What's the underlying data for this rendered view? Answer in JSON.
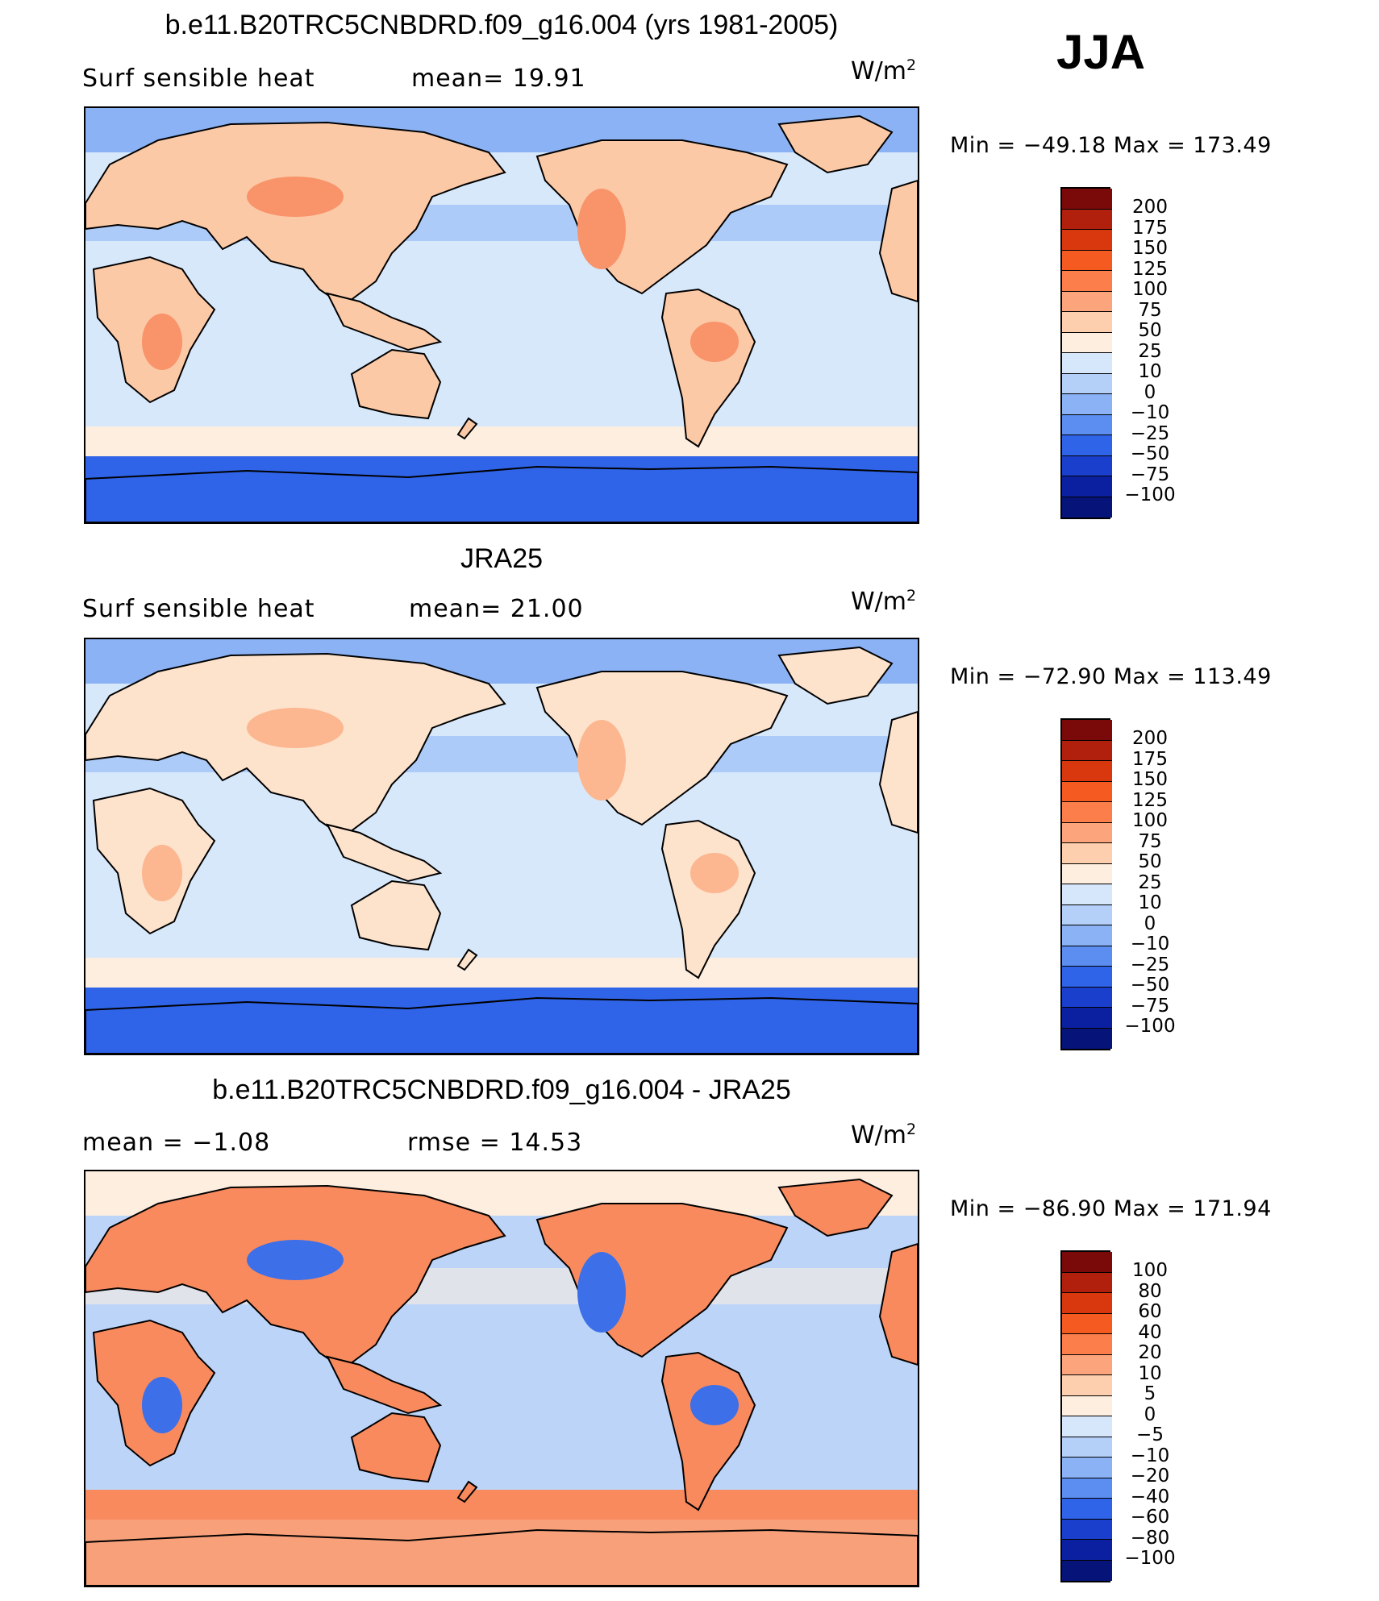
{
  "header": {
    "season": "JJA"
  },
  "panels": [
    {
      "title": "b.e11.B20TRC5CNBDRD.f09_g16.004 (yrs 1981-2005)",
      "left_label": "Surf  sensible  heat",
      "center_label": "mean=   19.91",
      "units_base": "W/m",
      "units_exp": "2",
      "minmax": "Min  =  −49.18  Max  =  173.49",
      "colorbar": {
        "labels": [
          "200",
          "175",
          "150",
          "125",
          "100",
          "75",
          "50",
          "25",
          "10",
          "0",
          "−10",
          "−25",
          "−50",
          "−75",
          "−100"
        ],
        "colors": [
          "#7a0a0a",
          "#b0200c",
          "#d9380f",
          "#f55a21",
          "#fb7e4b",
          "#fca57d",
          "#fdcfae",
          "#fdeedf",
          "#d6e6fb",
          "#b4cff8",
          "#8ab2f5",
          "#5b8ef0",
          "#2f63e8",
          "#1a3fcc",
          "#0b20a0",
          "#06147a"
        ]
      },
      "map": {
        "land_fill": "#fcc9a6",
        "ocean_fill": "#d7e8fb",
        "polar_fill": "#2f63e8",
        "arctic_fill": "#8ab2f5",
        "band_fill": "#fdeedf",
        "hot_fill": "#f8936a"
      }
    },
    {
      "title": "JRA25",
      "left_label": "Surf  sensible  heat",
      "center_label": "mean=   21.00",
      "units_base": "W/m",
      "units_exp": "2",
      "minmax": "Min  =  −72.90  Max  =  113.49",
      "colorbar": {
        "labels": [
          "200",
          "175",
          "150",
          "125",
          "100",
          "75",
          "50",
          "25",
          "10",
          "0",
          "−10",
          "−25",
          "−50",
          "−75",
          "−100"
        ],
        "colors": [
          "#7a0a0a",
          "#b0200c",
          "#d9380f",
          "#f55a21",
          "#fb7e4b",
          "#fca57d",
          "#fdcfae",
          "#fdeedf",
          "#d6e6fb",
          "#b4cff8",
          "#8ab2f5",
          "#5b8ef0",
          "#2f63e8",
          "#1a3fcc",
          "#0b20a0",
          "#06147a"
        ]
      },
      "map": {
        "land_fill": "#fde2cc",
        "ocean_fill": "#d7e8fb",
        "polar_fill": "#2f63e8",
        "arctic_fill": "#8ab2f5",
        "band_fill": "#fdeedf",
        "hot_fill": "#fcb690"
      }
    },
    {
      "title": "b.e11.B20TRC5CNBDRD.f09_g16.004 - JRA25",
      "left_label": "mean  =    −1.08",
      "center_label": "rmse  =    14.53",
      "units_base": "W/m",
      "units_exp": "2",
      "minmax": "Min  =  −86.90  Max  =  171.94",
      "colorbar": {
        "labels": [
          "100",
          "80",
          "60",
          "40",
          "20",
          "10",
          "5",
          "0",
          "−5",
          "−10",
          "−20",
          "−40",
          "−60",
          "−80",
          "−100"
        ],
        "colors": [
          "#7a0a0a",
          "#b0200c",
          "#d9380f",
          "#f55a21",
          "#fb7e4b",
          "#fca57d",
          "#fdcfae",
          "#fdeedf",
          "#d6e6fb",
          "#b4cff8",
          "#8ab2f5",
          "#5b8ef0",
          "#2f63e8",
          "#1a3fcc",
          "#0b20a0",
          "#06147a"
        ]
      },
      "map": {
        "land_fill": "#f88a5e",
        "ocean_fill": "#bcd4f8",
        "polar_fill": "#f7a07a",
        "arctic_fill": "#fdeedf",
        "band_fill": "#f88a5e",
        "hot_fill": "#3d6fe9"
      }
    }
  ]
}
